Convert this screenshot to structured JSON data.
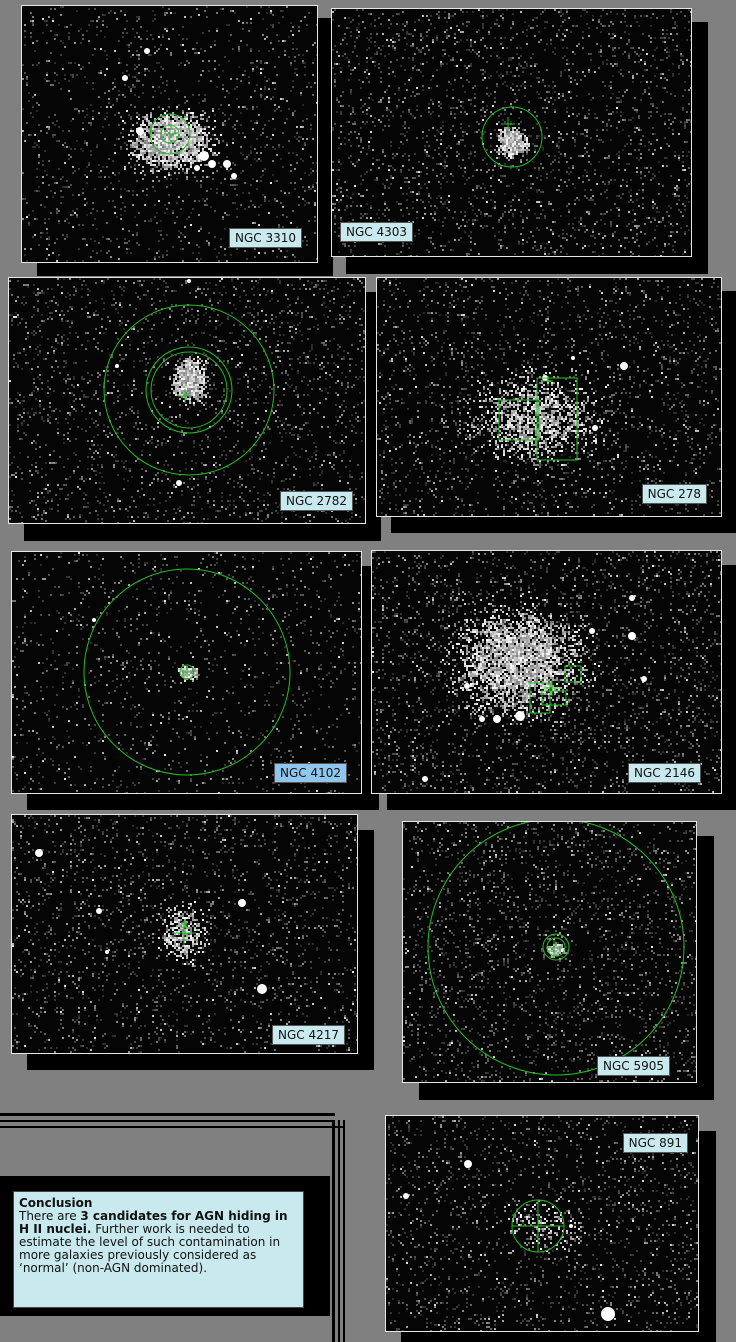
{
  "panels": [
    {
      "id": "ngc3310",
      "label": "NGC 3310",
      "label_style": "teal"
    },
    {
      "id": "ngc4303",
      "label": "NGC 4303",
      "label_style": "teal"
    },
    {
      "id": "ngc2782",
      "label": "NGC 2782",
      "label_style": "teal"
    },
    {
      "id": "ngc278",
      "label": "NGC 278",
      "label_style": "teal"
    },
    {
      "id": "ngc4102",
      "label": "NGC 4102",
      "label_style": "blue"
    },
    {
      "id": "ngc2146",
      "label": "NGC 2146",
      "label_style": "teal"
    },
    {
      "id": "ngc4217",
      "label": "NGC 4217",
      "label_style": "teal"
    },
    {
      "id": "ngc5905",
      "label": "NGC 5905",
      "label_style": "teal"
    },
    {
      "id": "ngc891",
      "label": "NGC 891",
      "label_style": "teal"
    }
  ],
  "conclusion": {
    "heading": "Conclusion",
    "intro": "There are ",
    "highlight": "3 candidates for AGN hiding in H II nuclei.",
    "body": "  Further work is needed to estimate the level of such contamination in more galaxies previously considered as ‘normal’ (non-AGN dominated)."
  },
  "colors": {
    "background": "#808080",
    "label_teal": "#c8e9ee",
    "label_blue": "#8ec6ee",
    "region_overlay": "#22c022"
  }
}
